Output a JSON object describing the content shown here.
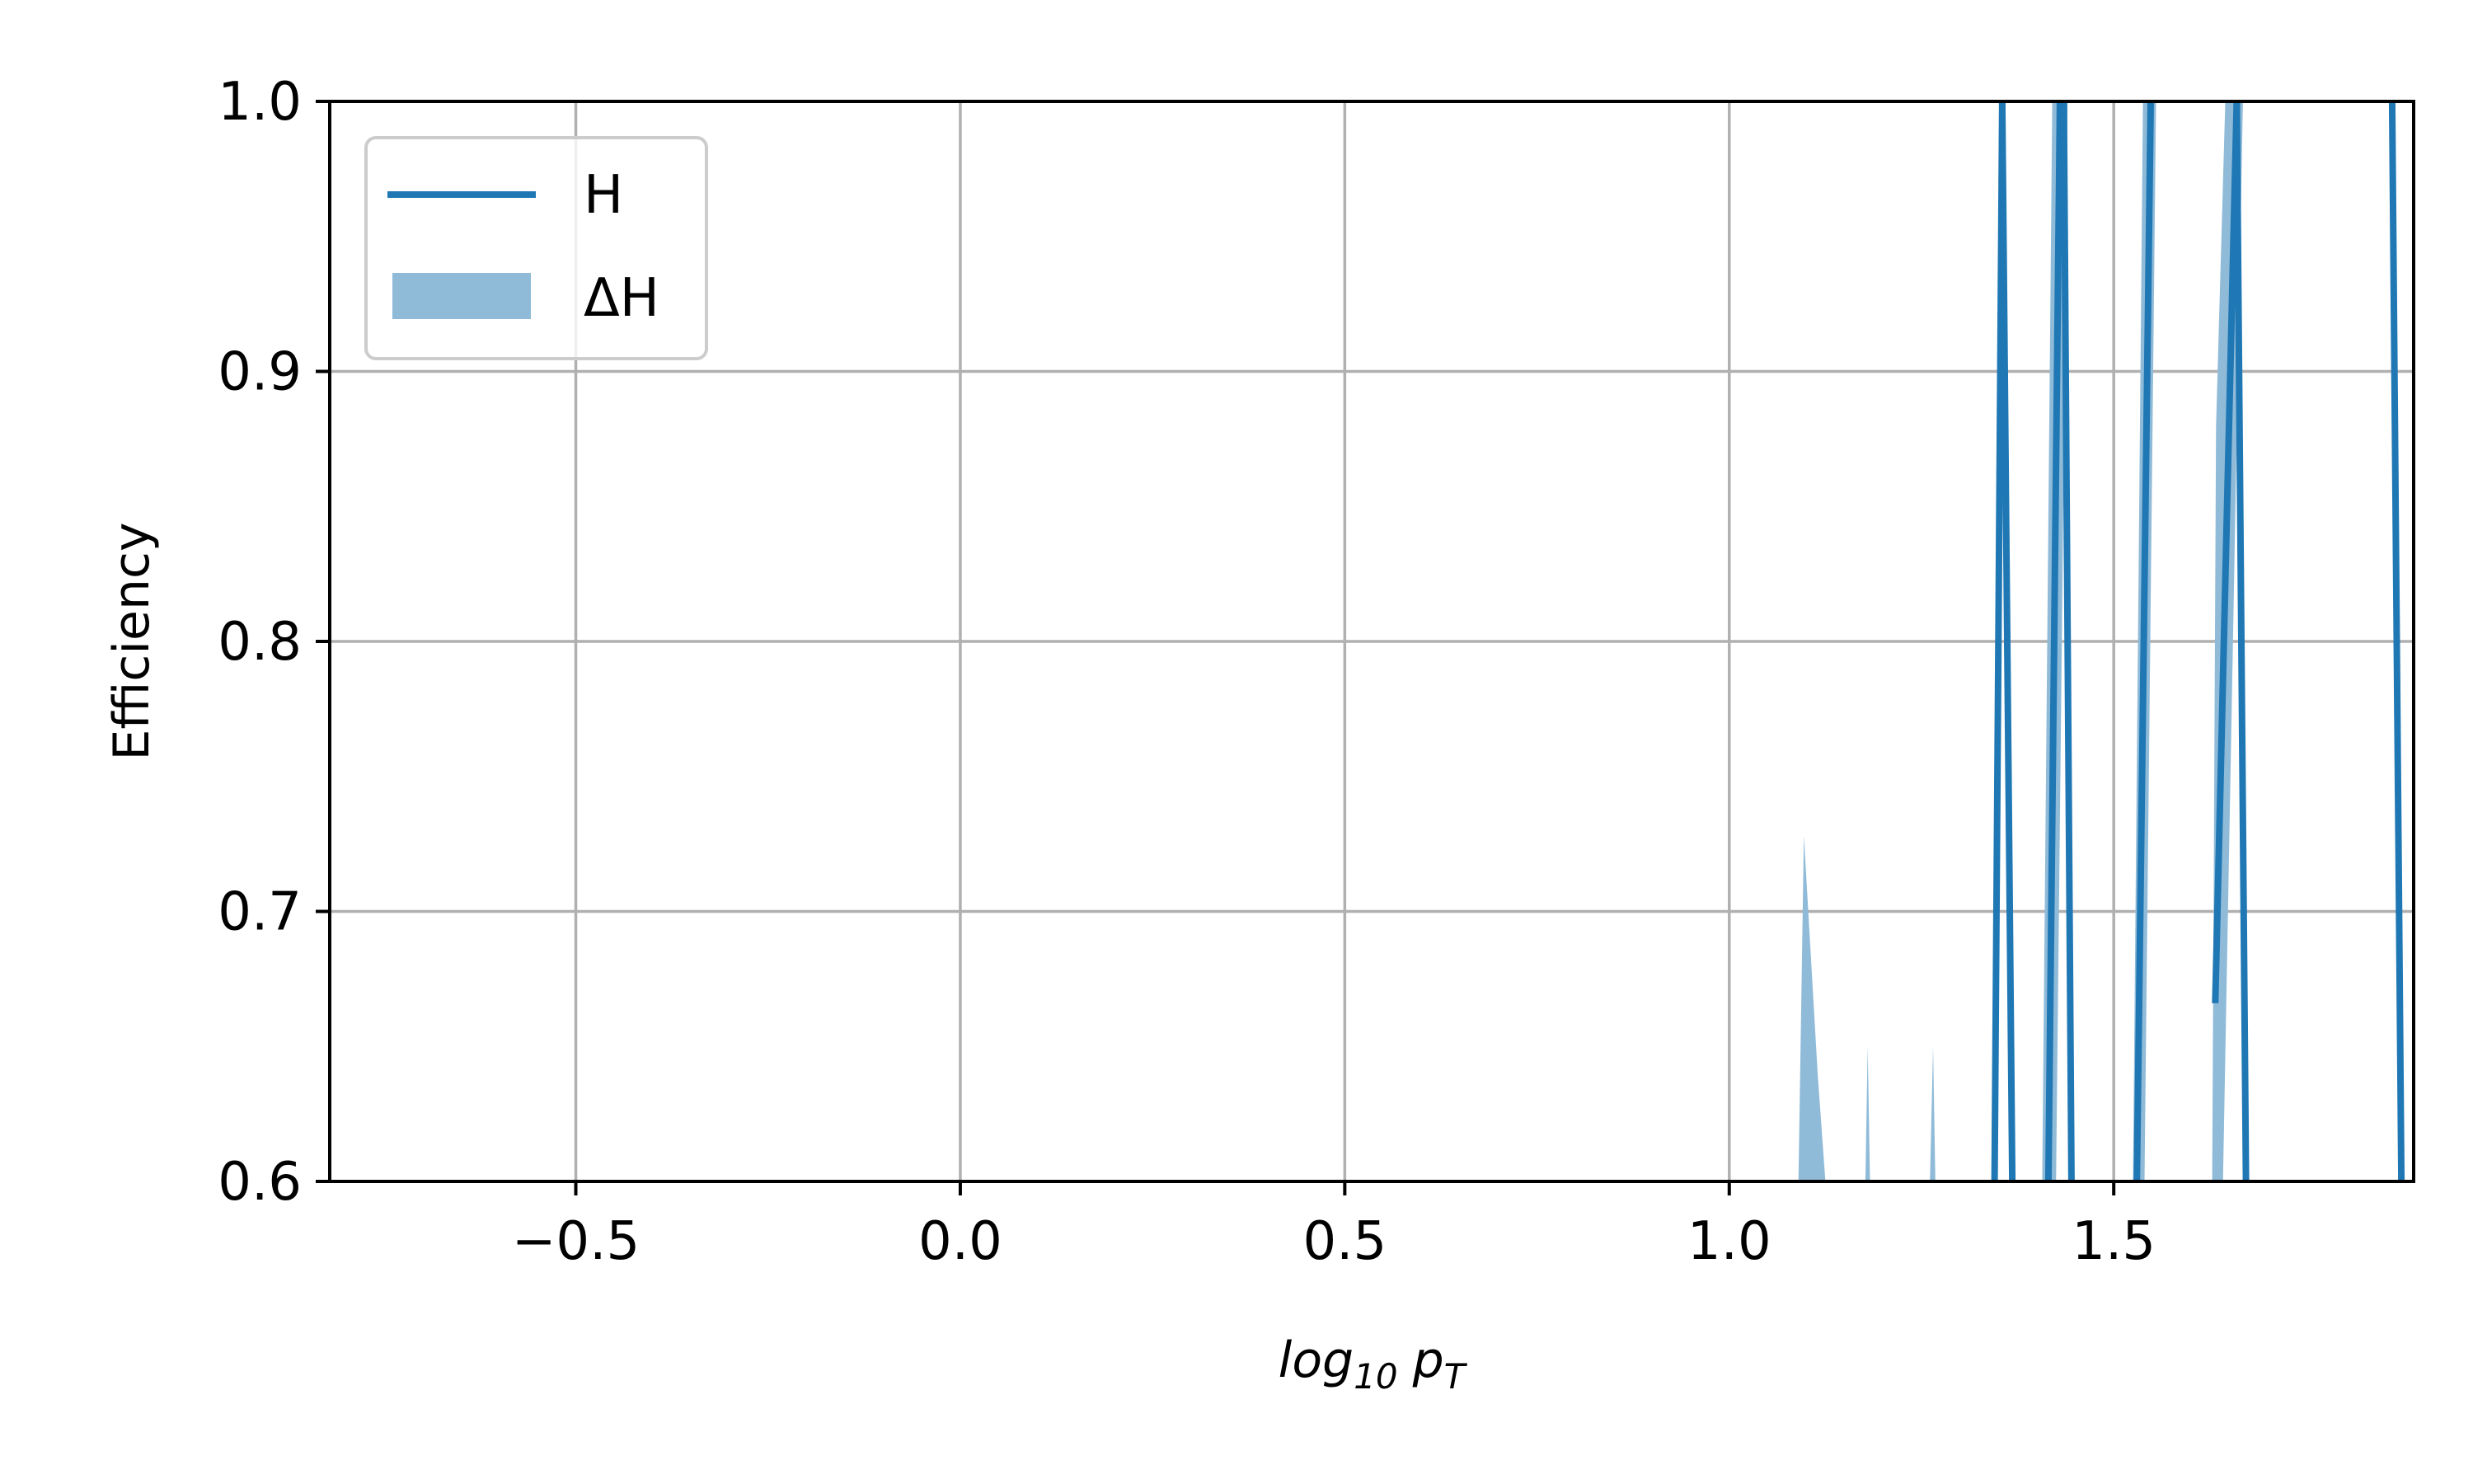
{
  "chart_data": {
    "type": "line",
    "xlabel": "log10 pT",
    "xlabel_parts": {
      "base": "log",
      "base_sub": "10",
      "var": "p",
      "var_sub": "T"
    },
    "ylabel": "Efficiency",
    "xlim": [
      -0.82,
      1.89
    ],
    "ylim": [
      0.6,
      1.0
    ],
    "x_ticks": [
      -0.5,
      0.0,
      0.5,
      1.0,
      1.5
    ],
    "x_tick_labels": [
      "−0.5",
      "0.0",
      "0.5",
      "1.0",
      "1.5"
    ],
    "y_ticks": [
      0.6,
      0.7,
      0.8,
      0.9,
      1.0
    ],
    "y_tick_labels": [
      "0.6",
      "0.7",
      "0.8",
      "0.9",
      "1.0"
    ],
    "grid": true,
    "legend_position": "top-left",
    "colors": {
      "line": "#1f77b4",
      "band": "#8fbbd9",
      "grid": "#b0b0b0"
    },
    "legend": [
      {
        "label": "H",
        "kind": "line"
      },
      {
        "label": "ΔH",
        "kind": "band"
      }
    ],
    "series": [
      {
        "name": "H",
        "kind": "line",
        "segments": [
          [
            [
              1.345,
              0.6
            ],
            [
              1.355,
              1.0
            ]
          ],
          [
            [
              1.355,
              1.0
            ],
            [
              1.368,
              0.6
            ]
          ],
          [
            [
              1.415,
              0.6
            ],
            [
              1.43,
              1.0
            ]
          ],
          [
            [
              1.435,
              1.0
            ],
            [
              1.445,
              0.6
            ]
          ],
          [
            [
              1.53,
              0.6
            ],
            [
              1.548,
              1.0
            ]
          ],
          [
            [
              1.632,
              0.666
            ],
            [
              1.66,
              1.0
            ]
          ],
          [
            [
              1.66,
              1.0
            ],
            [
              1.672,
              0.6
            ]
          ],
          [
            [
              1.862,
              1.0
            ],
            [
              1.874,
              0.6
            ]
          ]
        ]
      },
      {
        "name": "ΔH",
        "kind": "band",
        "polygons": [
          [
            [
              1.09,
              0.6
            ],
            [
              1.097,
              0.728
            ],
            [
              1.115,
              0.64
            ],
            [
              1.125,
              0.6
            ]
          ],
          [
            [
              1.177,
              0.6
            ],
            [
              1.18,
              0.65
            ],
            [
              1.183,
              0.6
            ]
          ],
          [
            [
              1.261,
              0.6
            ],
            [
              1.265,
              0.65
            ],
            [
              1.268,
              0.6
            ]
          ],
          [
            [
              1.407,
              0.6
            ],
            [
              1.42,
              1.0
            ],
            [
              1.44,
              1.0
            ],
            [
              1.425,
              0.6
            ]
          ],
          [
            [
              1.525,
              0.6
            ],
            [
              1.538,
              1.0
            ],
            [
              1.555,
              1.0
            ],
            [
              1.54,
              0.6
            ]
          ],
          [
            [
              1.628,
              0.6
            ],
            [
              1.633,
              0.88
            ],
            [
              1.645,
              1.0
            ],
            [
              1.668,
              1.0
            ],
            [
              1.642,
              0.6
            ]
          ]
        ]
      }
    ]
  }
}
